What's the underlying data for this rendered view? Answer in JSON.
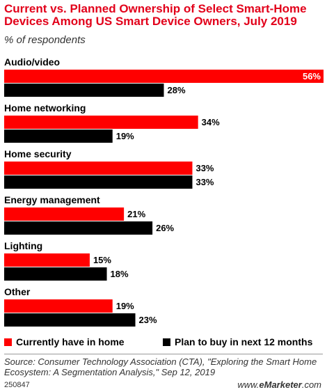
{
  "header": {
    "title": "Current vs. Planned Ownership of Select Smart-Home Devices Among US Smart Device Owners, July 2019",
    "subtitle": "% of respondents"
  },
  "chart_data": {
    "type": "bar",
    "orientation": "horizontal",
    "categories": [
      "Audio/video",
      "Home networking",
      "Home security",
      "Energy management",
      "Lighting",
      "Other"
    ],
    "series": [
      {
        "name": "Currently have in home",
        "color": "#ff0000",
        "values": [
          56,
          34,
          33,
          21,
          15,
          19
        ]
      },
      {
        "name": "Plan to buy in next 12 months",
        "color": "#000000",
        "values": [
          28,
          19,
          33,
          26,
          18,
          23
        ]
      }
    ],
    "value_suffix": "%",
    "legend_position": "bottom",
    "grid": false
  },
  "legend": {
    "items": [
      {
        "label": "Currently have in home",
        "color": "#ff0000"
      },
      {
        "label": "Plan to buy in next 12 months",
        "color": "#000000"
      }
    ]
  },
  "footer": {
    "source": "Source: Consumer Technology Association (CTA), \"Exploring the Smart Home Ecosystem: A Segmentation Analysis,\" Sep 12, 2019",
    "id": "250847",
    "brand_prefix": "www.",
    "brand_name": "eMarketer",
    "brand_suffix": ".com"
  }
}
